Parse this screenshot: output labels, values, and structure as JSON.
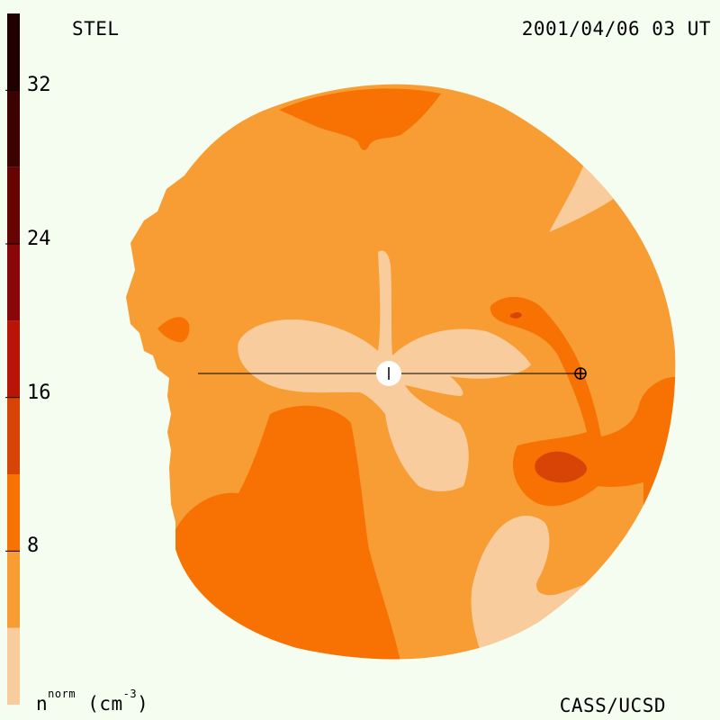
{
  "header": {
    "station": "STEL",
    "timestamp": "2001/04/06 03 UT"
  },
  "footer": {
    "quantity_symbol": "n",
    "quantity_superscript": "norm",
    "unit_open": " (cm",
    "unit_exponent": "-3",
    "unit_close": ")",
    "credit": "CASS/UCSD"
  },
  "colorbar": {
    "range": [
      0,
      36
    ],
    "tick_labels": [
      "8",
      "16",
      "24",
      "32"
    ],
    "tick_values": [
      8,
      16,
      24,
      32
    ],
    "levels": [
      {
        "from": 0,
        "to": 4,
        "color": "#f8cc9c"
      },
      {
        "from": 4,
        "to": 8,
        "color": "#f79d33"
      },
      {
        "from": 8,
        "to": 12,
        "color": "#f77203"
      },
      {
        "from": 12,
        "to": 16,
        "color": "#d84306"
      },
      {
        "from": 16,
        "to": 20,
        "color": "#b81408"
      },
      {
        "from": 20,
        "to": 24,
        "color": "#8a0707"
      },
      {
        "from": 24,
        "to": 28,
        "color": "#660404"
      },
      {
        "from": 28,
        "to": 32,
        "color": "#3c0202"
      },
      {
        "from": 32,
        "to": 36,
        "color": "#200000"
      }
    ]
  },
  "map": {
    "background_color": "#f5fcf0",
    "center_marker": "sun",
    "earth_marker": "earth-symbol"
  }
}
